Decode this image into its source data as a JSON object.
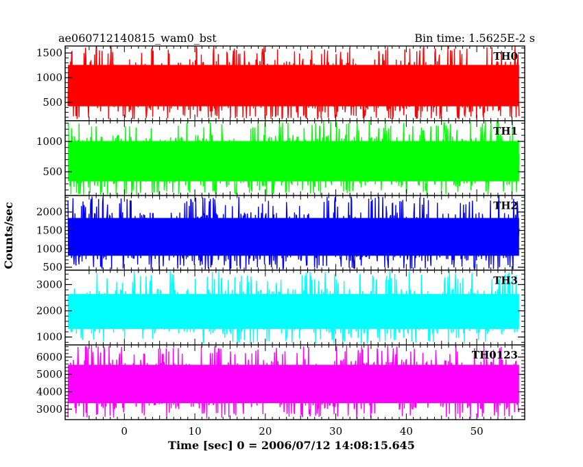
{
  "chart_data": {
    "type": "line",
    "title_left": "ae060712140815_wam0_bst",
    "title_right": "Bin time: 1.5625E-2 s",
    "xlabel": "Time [sec] 0 = 2006/07/12 14:08:15.645",
    "ylabel": "Counts/sec",
    "xlim": [
      -8.4,
      56.8
    ],
    "x_data_range": [
      -8,
      56
    ],
    "x_ticks": [
      0,
      10,
      20,
      30,
      40,
      50
    ],
    "x_tick_labels": [
      "0",
      "10",
      "20",
      "30",
      "40",
      "50"
    ],
    "panels": [
      {
        "name": "TH0",
        "color": "#ff0000",
        "ylim": [
          130,
          1640
        ],
        "ticks": [
          500,
          1000,
          1500
        ],
        "tick_labels": [
          "500",
          "1000",
          "1500"
        ],
        "y_min": 160,
        "y_max": 1640,
        "band_low": 290,
        "band_high": 1390,
        "mean": 800
      },
      {
        "name": "TH1",
        "color": "#00ff00",
        "ylim": [
          110,
          1340
        ],
        "ticks": [
          500,
          1000
        ],
        "tick_labels": [
          "500",
          "1000"
        ],
        "y_min": 110,
        "y_max": 1340,
        "band_low": 240,
        "band_high": 1110,
        "mean": 680
      },
      {
        "name": "TH2",
        "color": "#0000ff",
        "ylim": [
          420,
          2450
        ],
        "ticks": [
          500,
          1000,
          1500,
          2000
        ],
        "tick_labels": [
          "500",
          "1000",
          "1500",
          "2000"
        ],
        "y_min": 430,
        "y_max": 2450,
        "band_low": 650,
        "band_high": 2000,
        "mean": 1300
      },
      {
        "name": "TH3",
        "color": "#00ffff",
        "ylim": [
          700,
          3550
        ],
        "ticks": [
          1000,
          2000,
          3000
        ],
        "tick_labels": [
          "1000",
          "2000",
          "3000"
        ],
        "y_min": 740,
        "y_max": 3550,
        "band_low": 1100,
        "band_high": 2850,
        "mean": 1950
      },
      {
        "name": "TH0123",
        "color": "#ff00ff",
        "ylim": [
          2400,
          6700
        ],
        "ticks": [
          3000,
          4000,
          5000,
          6000
        ],
        "tick_labels": [
          "3000",
          "4000",
          "5000",
          "6000"
        ],
        "y_min": 2450,
        "y_max": 6700,
        "band_low": 3000,
        "band_high": 5900,
        "mean": 4350
      }
    ]
  }
}
